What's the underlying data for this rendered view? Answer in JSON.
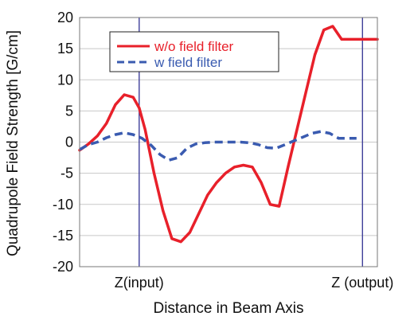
{
  "chart_data": {
    "type": "line",
    "xlabel": "Distance in Beam Axis",
    "ylabel": "Quadrupole Field Strength [G/cm]",
    "ylim": [
      -20,
      20
    ],
    "y_ticks": [
      20,
      15,
      10,
      5,
      0,
      -5,
      -10,
      -15,
      -20
    ],
    "x_marker_labels": [
      "Z(input)",
      "Z (output)"
    ],
    "x_marker_positions": [
      0.2,
      0.95
    ],
    "grid": "horizontal",
    "legend_position": "top-center",
    "xlim": [
      0,
      1
    ],
    "series": [
      {
        "name": "w/o field filter",
        "color": "#e8202a",
        "style": "solid",
        "x": [
          0.0,
          0.03,
          0.06,
          0.09,
          0.12,
          0.15,
          0.18,
          0.2,
          0.22,
          0.25,
          0.28,
          0.31,
          0.34,
          0.37,
          0.4,
          0.43,
          0.46,
          0.49,
          0.52,
          0.55,
          0.58,
          0.61,
          0.64,
          0.67,
          0.7,
          0.73,
          0.76,
          0.79,
          0.82,
          0.85,
          0.88,
          0.91,
          0.94,
          0.96,
          0.98,
          1.0
        ],
        "y": [
          -1.3,
          -0.3,
          1.0,
          3.0,
          6.0,
          7.6,
          7.2,
          5.5,
          2.0,
          -5.0,
          -11.0,
          -15.5,
          -16.0,
          -14.5,
          -11.5,
          -8.5,
          -6.5,
          -5.0,
          -4.0,
          -3.7,
          -4.0,
          -6.5,
          -10.0,
          -10.3,
          -4.0,
          2.0,
          8.0,
          14.0,
          18.0,
          18.6,
          16.5,
          16.5,
          16.5,
          16.5,
          16.5,
          16.5
        ]
      },
      {
        "name": "w field filter",
        "color": "#3a5bb0",
        "style": "dashed",
        "x": [
          0.0,
          0.03,
          0.06,
          0.09,
          0.12,
          0.15,
          0.18,
          0.21,
          0.24,
          0.27,
          0.3,
          0.33,
          0.36,
          0.39,
          0.42,
          0.45,
          0.48,
          0.51,
          0.54,
          0.57,
          0.6,
          0.63,
          0.66,
          0.69,
          0.72,
          0.75,
          0.78,
          0.81,
          0.84,
          0.87,
          0.9,
          0.93
        ],
        "y": [
          -1.2,
          -0.4,
          0.0,
          0.7,
          1.2,
          1.5,
          1.2,
          0.6,
          -0.5,
          -2.0,
          -2.9,
          -2.5,
          -1.0,
          -0.3,
          -0.1,
          0.0,
          0.0,
          0.0,
          0.0,
          -0.1,
          -0.4,
          -0.9,
          -1.0,
          -0.4,
          0.2,
          0.8,
          1.4,
          1.7,
          1.4,
          0.6,
          0.6,
          0.6
        ]
      }
    ]
  }
}
